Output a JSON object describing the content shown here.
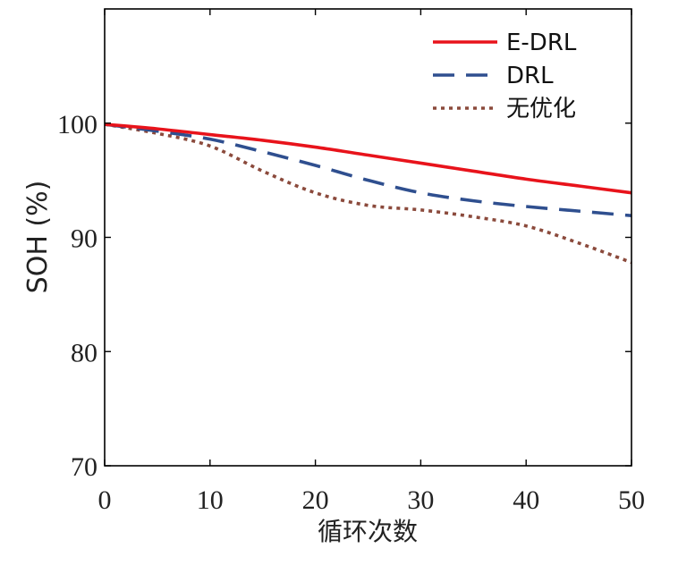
{
  "chart_data": {
    "type": "line",
    "xlabel": "循环次数",
    "ylabel": "SOH (%)",
    "xlim": [
      0,
      50
    ],
    "ylim": [
      70,
      110
    ],
    "x_ticks": [
      0,
      10,
      20,
      30,
      40,
      50
    ],
    "y_ticks": [
      70,
      80,
      90,
      100
    ],
    "x_tick_labels": [
      "0",
      "10",
      "20",
      "30",
      "40",
      "50"
    ],
    "y_tick_labels": [
      "70",
      "80",
      "90",
      "100"
    ],
    "grid": false,
    "legend_position": "top-right",
    "x": [
      0,
      5,
      10,
      15,
      20,
      25,
      30,
      35,
      40,
      45,
      50
    ],
    "series": [
      {
        "name": "E-DRL",
        "color": "#e8131b",
        "line_style": "solid",
        "values": [
          99.9,
          99.5,
          99.0,
          98.5,
          97.9,
          97.2,
          96.5,
          95.8,
          95.1,
          94.5,
          93.9
        ]
      },
      {
        "name": "DRL",
        "color": "#2f4f8f",
        "line_style": "dashed",
        "values": [
          99.9,
          99.3,
          98.6,
          97.5,
          96.3,
          95.0,
          93.9,
          93.2,
          92.7,
          92.3,
          91.9
        ]
      },
      {
        "name": "无优化",
        "color": "#8b4a3c",
        "line_style": "dotted",
        "values": [
          99.9,
          99.1,
          98.0,
          95.8,
          93.9,
          92.8,
          92.4,
          91.8,
          91.0,
          89.5,
          87.8
        ]
      }
    ]
  }
}
